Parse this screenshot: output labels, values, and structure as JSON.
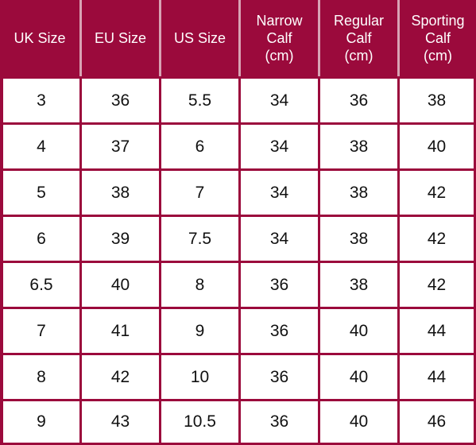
{
  "headers": [
    {
      "lines": [
        "UK Size"
      ]
    },
    {
      "lines": [
        "EU Size"
      ]
    },
    {
      "lines": [
        "US Size"
      ]
    },
    {
      "lines": [
        "Narrow",
        "Calf",
        "(cm)"
      ]
    },
    {
      "lines": [
        "Regular",
        "Calf",
        "(cm)"
      ]
    },
    {
      "lines": [
        "Sporting",
        "Calf",
        "(cm)"
      ]
    }
  ],
  "rows": [
    [
      "3",
      "36",
      "5.5",
      "34",
      "36",
      "38"
    ],
    [
      "4",
      "37",
      "6",
      "34",
      "38",
      "40"
    ],
    [
      "5",
      "38",
      "7",
      "34",
      "38",
      "42"
    ],
    [
      "6",
      "39",
      "7.5",
      "34",
      "38",
      "42"
    ],
    [
      "6.5",
      "40",
      "8",
      "36",
      "38",
      "42"
    ],
    [
      "7",
      "41",
      "9",
      "36",
      "40",
      "44"
    ],
    [
      "8",
      "42",
      "10",
      "36",
      "40",
      "44"
    ],
    [
      "9",
      "43",
      "10.5",
      "36",
      "40",
      "46"
    ]
  ],
  "colors": {
    "header_bg": "#9b0a3c",
    "header_text": "#ffffff",
    "cell_bg": "#ffffff",
    "cell_text": "#111111"
  }
}
